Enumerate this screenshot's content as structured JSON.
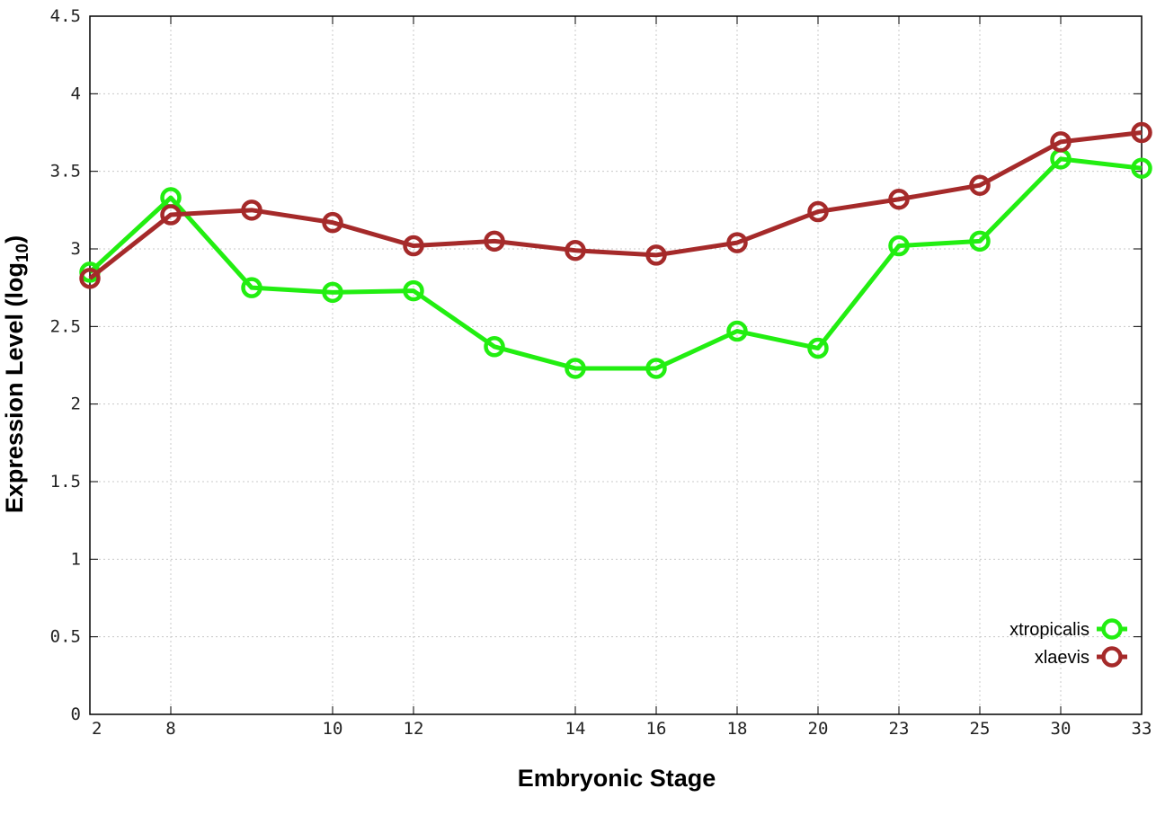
{
  "chart_data": {
    "type": "line",
    "xlabel": "Embryonic Stage",
    "ylabel": "Expression Level (log",
    "ylabel_subscript": "10",
    "ylabel_close": ")",
    "ylim": [
      0,
      4.5
    ],
    "yticks": [
      "0",
      "0.5",
      "1",
      "1.5",
      "2",
      "2.5",
      "3",
      "3.5",
      "4",
      "4.5"
    ],
    "x_categories": [
      "2",
      "8",
      "9",
      "10",
      "12",
      "13",
      "14",
      "16",
      "18",
      "20",
      "23",
      "25",
      "30",
      "33"
    ],
    "xticks": [
      "2",
      "8",
      "10",
      "12",
      "14",
      "16",
      "18",
      "20",
      "23",
      "25",
      "30",
      "33"
    ],
    "grid": true,
    "legend_position": "bottom-right",
    "series": [
      {
        "name": "xtropicalis",
        "color": "#22ee11",
        "x": [
          2,
          8,
          9,
          10,
          12,
          13,
          14,
          16,
          18,
          20,
          23,
          25,
          30,
          33
        ],
        "values": [
          2.85,
          3.33,
          2.75,
          2.72,
          2.73,
          2.37,
          2.23,
          2.23,
          2.47,
          2.36,
          3.02,
          3.05,
          3.58,
          3.52
        ]
      },
      {
        "name": "xlaevis",
        "color": "#a52a2a",
        "x": [
          2,
          8,
          9,
          10,
          12,
          13,
          14,
          16,
          18,
          20,
          23,
          25,
          30,
          33
        ],
        "values": [
          2.81,
          3.22,
          3.25,
          3.17,
          3.02,
          3.05,
          2.99,
          2.96,
          3.04,
          3.24,
          3.32,
          3.41,
          3.69,
          3.75
        ]
      }
    ]
  }
}
